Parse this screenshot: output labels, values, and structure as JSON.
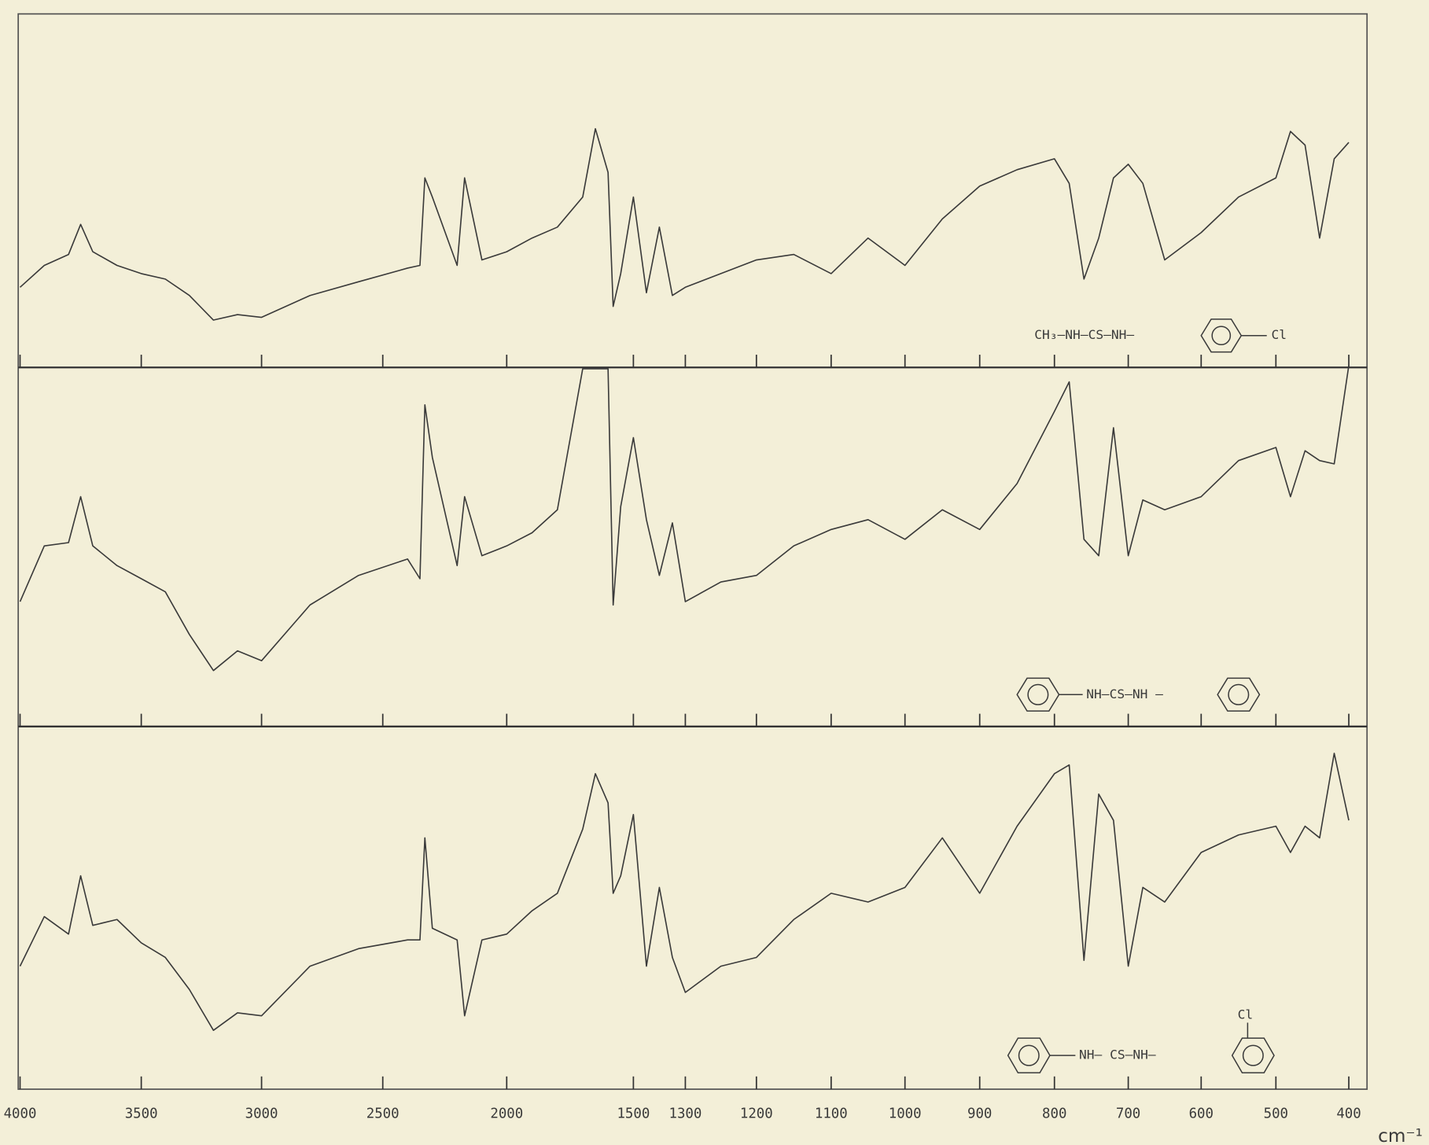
{
  "chart_data": {
    "type": "line",
    "x_unit": "cm⁻¹",
    "xticks": [
      4000,
      3500,
      3000,
      2500,
      2000,
      1500,
      1300,
      1200,
      1100,
      1000,
      900,
      800,
      700,
      600,
      500,
      400
    ],
    "x": [
      4000,
      3900,
      3800,
      3750,
      3700,
      3600,
      3500,
      3400,
      3300,
      3200,
      3100,
      3000,
      2800,
      2600,
      2400,
      2350,
      2330,
      2300,
      2200,
      2170,
      2100,
      2000,
      1900,
      1800,
      1700,
      1650,
      1600,
      1580,
      1550,
      1500,
      1450,
      1400,
      1350,
      1300,
      1250,
      1200,
      1150,
      1100,
      1050,
      1000,
      950,
      900,
      850,
      800,
      780,
      760,
      740,
      720,
      700,
      680,
      650,
      600,
      550,
      500,
      480,
      460,
      440,
      420,
      400
    ],
    "series": [
      {
        "structure": [
          "CH₃—NH—CS—NH—",
          "Cl"
        ],
        "color": "#3a3a3a",
        "values": [
          15,
          23,
          27,
          38,
          28,
          23,
          20,
          18,
          12,
          3,
          5,
          4,
          12,
          17,
          22,
          23,
          55,
          48,
          23,
          55,
          25,
          28,
          33,
          37,
          48,
          73,
          57,
          8,
          20,
          48,
          13,
          37,
          12,
          15,
          20,
          25,
          27,
          20,
          33,
          23,
          40,
          52,
          58,
          62,
          53,
          18,
          33,
          55,
          60,
          53,
          25,
          35,
          48,
          55,
          72,
          67,
          33,
          62,
          68
        ]
      },
      {
        "structure": [
          "NH—CS—NH —"
        ],
        "color": "#3a3a3a",
        "values": [
          25,
          42,
          43,
          57,
          42,
          36,
          32,
          28,
          15,
          4,
          10,
          7,
          24,
          33,
          38,
          32,
          85,
          69,
          36,
          57,
          39,
          42,
          46,
          53,
          96,
          96,
          96,
          24,
          54,
          75,
          50,
          33,
          49,
          25,
          31,
          33,
          42,
          47,
          50,
          44,
          53,
          47,
          61,
          83,
          92,
          44,
          39,
          78,
          39,
          56,
          53,
          57,
          68,
          72,
          57,
          71,
          68,
          67,
          97
        ]
      },
      {
        "structure": [
          "NH— CS—NH—",
          "Cl"
        ],
        "color": "#3a3a3a",
        "values": [
          25,
          42,
          36,
          56,
          39,
          41,
          33,
          28,
          17,
          3,
          9,
          8,
          25,
          31,
          34,
          34,
          69,
          38,
          34,
          8,
          34,
          36,
          44,
          50,
          72,
          91,
          81,
          50,
          56,
          77,
          25,
          52,
          28,
          16,
          25,
          28,
          41,
          50,
          47,
          52,
          69,
          50,
          73,
          91,
          94,
          27,
          84,
          75,
          25,
          52,
          47,
          64,
          70,
          73,
          64,
          73,
          69,
          98,
          75
        ]
      }
    ]
  }
}
